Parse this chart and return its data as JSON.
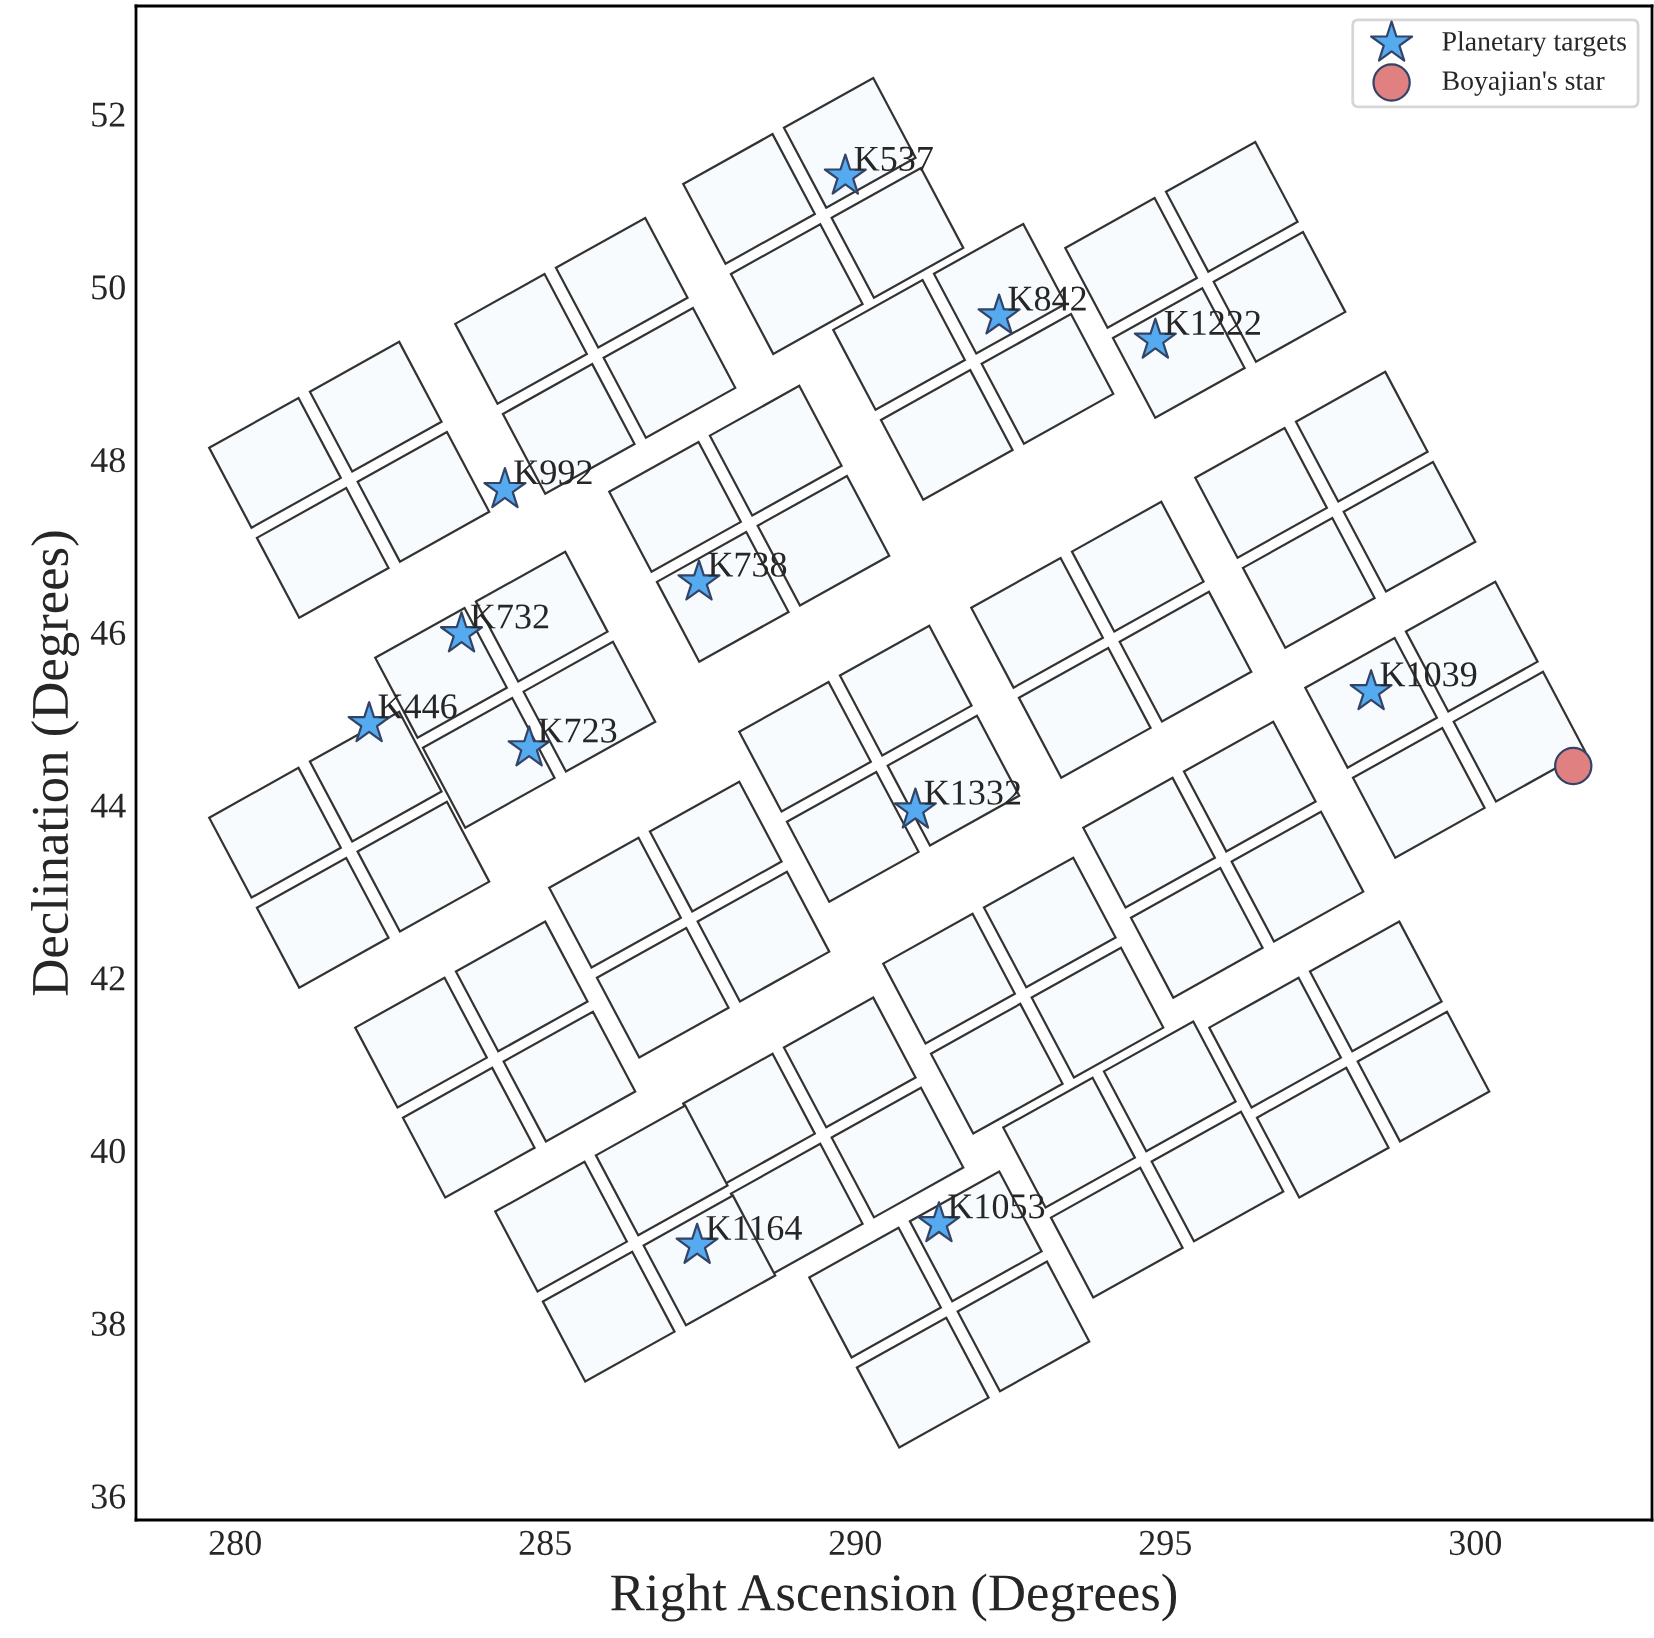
{
  "chart_data": {
    "type": "scatter",
    "xlabel": "Right Ascension (Degrees)",
    "ylabel": "Declination (Degrees)",
    "xlim": [
      278.4,
      302.85
    ],
    "ylim": [
      35.72,
      53.25
    ],
    "xticks": [
      280,
      285,
      290,
      295,
      300
    ],
    "yticks": [
      36,
      38,
      40,
      42,
      44,
      46,
      48,
      50,
      52
    ],
    "grid": false,
    "legend": "top right",
    "series": [
      {
        "name": "Planetary targets",
        "color": "#55aaf0",
        "marker": "star",
        "x": [
          289.84,
          292.32,
          294.84,
          284.35,
          287.48,
          283.65,
          282.16,
          284.74,
          290.97,
          298.32,
          287.45,
          291.35
        ],
        "values": [
          51.28,
          49.66,
          49.38,
          47.65,
          46.58,
          45.98,
          44.94,
          44.66,
          43.94,
          45.31,
          38.9,
          39.15
        ]
      },
      {
        "name": "Boyajian's star",
        "color": "#e08080",
        "marker": "circle",
        "x": [
          301.58
        ],
        "values": [
          44.45
        ]
      }
    ],
    "annotations": [
      {
        "text": "K537",
        "x": 289.84,
        "y": 51.28
      },
      {
        "text": "K842",
        "x": 292.32,
        "y": 49.66
      },
      {
        "text": "K1222",
        "x": 294.84,
        "y": 49.38
      },
      {
        "text": "K992",
        "x": 284.35,
        "y": 47.65
      },
      {
        "text": "K738",
        "x": 287.48,
        "y": 46.58
      },
      {
        "text": "K732",
        "x": 283.65,
        "y": 45.98
      },
      {
        "text": "K446",
        "x": 282.16,
        "y": 44.94
      },
      {
        "text": "K723",
        "x": 284.74,
        "y": 44.66
      },
      {
        "text": "K1332",
        "x": 290.97,
        "y": 43.94
      },
      {
        "text": "K1039",
        "x": 298.32,
        "y": 45.31
      },
      {
        "text": "K1164",
        "x": 287.45,
        "y": 38.9
      },
      {
        "text": "K1053",
        "x": 291.35,
        "y": 39.15
      }
    ]
  }
}
